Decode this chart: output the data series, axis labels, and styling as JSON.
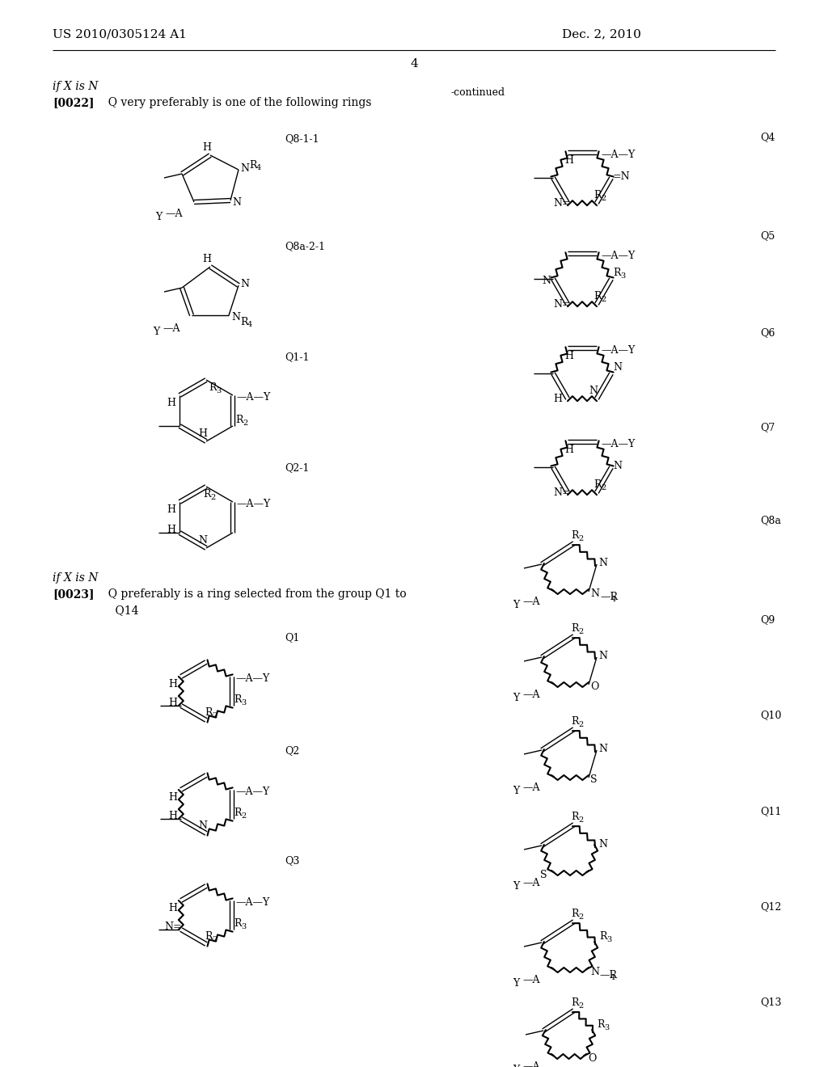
{
  "bg_color": "#ffffff",
  "text_color": "#000000",
  "page_header_left": "US 2010/0305124 A1",
  "page_header_right": "Dec. 2, 2010",
  "page_number": "4",
  "continued": "-continued"
}
